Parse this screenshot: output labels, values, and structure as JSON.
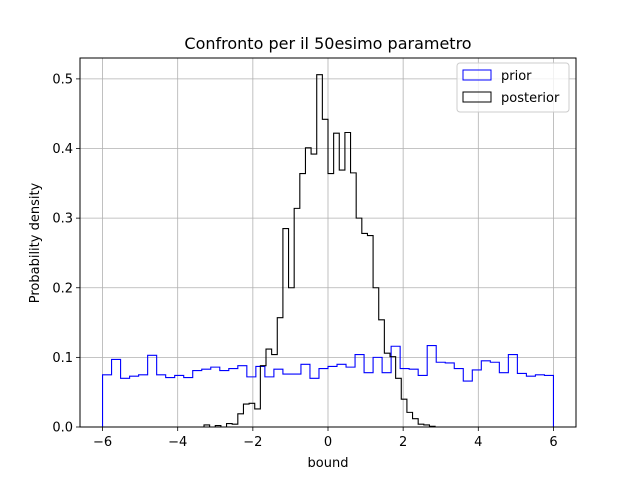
{
  "chart_data": {
    "type": "histogram-step",
    "title": "Confronto per il 50esimo parametro",
    "xlabel": "bound",
    "ylabel": "Probability density",
    "xlim": [
      -6.6,
      6.6
    ],
    "ylim": [
      0,
      0.53
    ],
    "xticks": [
      -6,
      -4,
      -2,
      0,
      2,
      4,
      6
    ],
    "yticks": [
      0.0,
      0.1,
      0.2,
      0.3,
      0.4,
      0.5
    ],
    "grid": true,
    "legend_position": "top-right",
    "series": [
      {
        "name": "prior",
        "color": "#0000ff",
        "edges": [
          -6.0,
          -5.76,
          -5.52,
          -5.28,
          -5.04,
          -4.8,
          -4.56,
          -4.32,
          -4.08,
          -3.84,
          -3.6,
          -3.36,
          -3.12,
          -2.88,
          -2.64,
          -2.4,
          -2.16,
          -1.92,
          -1.68,
          -1.44,
          -1.2,
          -0.96,
          -0.72,
          -0.48,
          -0.24,
          0.0,
          0.24,
          0.48,
          0.72,
          0.96,
          1.2,
          1.44,
          1.68,
          1.92,
          2.16,
          2.4,
          2.64,
          2.88,
          3.12,
          3.36,
          3.6,
          3.84,
          4.08,
          4.32,
          4.56,
          4.8,
          5.04,
          5.28,
          5.52,
          5.76,
          6.0
        ],
        "values": [
          0.075,
          0.097,
          0.07,
          0.073,
          0.075,
          0.103,
          0.075,
          0.071,
          0.074,
          0.071,
          0.081,
          0.083,
          0.086,
          0.081,
          0.084,
          0.088,
          0.072,
          0.087,
          0.072,
          0.083,
          0.076,
          0.076,
          0.09,
          0.07,
          0.084,
          0.087,
          0.09,
          0.086,
          0.104,
          0.078,
          0.1,
          0.078,
          0.116,
          0.084,
          0.083,
          0.074,
          0.117,
          0.093,
          0.092,
          0.084,
          0.066,
          0.082,
          0.095,
          0.093,
          0.078,
          0.104,
          0.077,
          0.073,
          0.075,
          0.074
        ]
      },
      {
        "name": "posterior",
        "color": "#000000",
        "edges": [
          -3.3,
          -3.15,
          -3.0,
          -2.85,
          -2.7,
          -2.55,
          -2.4,
          -2.25,
          -2.1,
          -1.95,
          -1.8,
          -1.65,
          -1.5,
          -1.35,
          -1.2,
          -1.05,
          -0.9,
          -0.75,
          -0.6,
          -0.45,
          -0.3,
          -0.15,
          0.0,
          0.15,
          0.3,
          0.45,
          0.6,
          0.75,
          0.9,
          1.05,
          1.2,
          1.35,
          1.5,
          1.65,
          1.8,
          1.95,
          2.1,
          2.25,
          2.4,
          2.55,
          2.7,
          2.85,
          3.0,
          3.15,
          3.3
        ],
        "values": [
          0.003,
          0.0,
          0.002,
          0.0,
          0.005,
          0.004,
          0.019,
          0.033,
          0.034,
          0.026,
          0.088,
          0.112,
          0.104,
          0.157,
          0.285,
          0.2,
          0.314,
          0.364,
          0.401,
          0.392,
          0.506,
          0.442,
          0.364,
          0.422,
          0.369,
          0.423,
          0.365,
          0.3,
          0.278,
          0.275,
          0.2,
          0.154,
          0.106,
          0.101,
          0.07,
          0.04,
          0.021,
          0.012,
          0.004,
          0.003,
          0.001,
          0.0,
          0.0,
          0.0
        ]
      }
    ]
  }
}
